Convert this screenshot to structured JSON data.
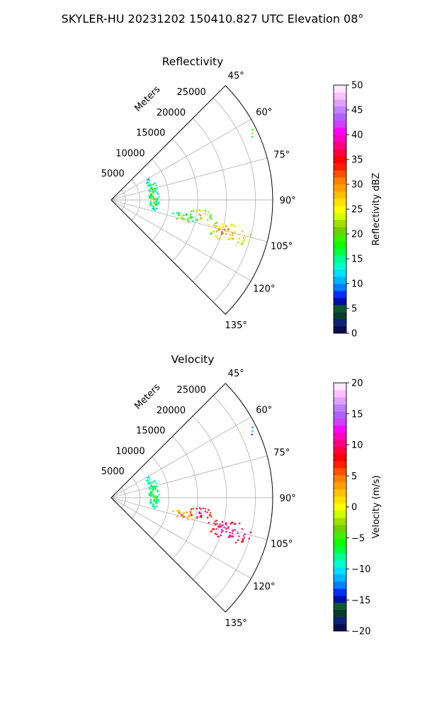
{
  "title": "SKYLER-HU  20231202  150410.827 UTC Elevation 08°",
  "chart_data": [
    {
      "type": "heatmap",
      "subtype": "polar-sector (radar PPI)",
      "title": "Reflectivity",
      "range_axis_label": "Meters",
      "range_ticks": [
        5000,
        10000,
        15000,
        20000,
        25000
      ],
      "range_max": 28000,
      "azimuth_range_deg": [
        45,
        135
      ],
      "azimuth_ticks": [
        "45°",
        "60°",
        "75°",
        "90°",
        "105°",
        "120°",
        "135°"
      ],
      "grid": true,
      "colorbar": {
        "label": "Reflectivity dBZ",
        "min": 0,
        "max": 50,
        "ticks": [
          "0",
          "5",
          "10",
          "15",
          "20",
          "25",
          "30",
          "35",
          "40",
          "45",
          "50"
        ],
        "placement": "right",
        "colors": [
          "#0c0c4f",
          "#0e2378",
          "#0a3d2c",
          "#0d5a32",
          "#0010a8",
          "#0030ff",
          "#0080ff",
          "#00b5ff",
          "#00e0ff",
          "#00ffcc",
          "#00ff90",
          "#00ff40",
          "#10ff00",
          "#40ee00",
          "#70d000",
          "#a0e000",
          "#d0ff00",
          "#ffff00",
          "#ffe000",
          "#ffc000",
          "#ffa000",
          "#ff8000",
          "#ff5000",
          "#ff2000",
          "#ff0000",
          "#ff0040",
          "#ff0080",
          "#ff00c0",
          "#ff00ff",
          "#d040ff",
          "#b060ff",
          "#c080ff",
          "#e0a0ff",
          "#ffc0ff",
          "#ffe8ff"
        ]
      },
      "echoes": [
        {
          "region": "near-range band",
          "az": [
            58,
            106
          ],
          "range_m": [
            6500,
            8200
          ],
          "dbz": 15
        },
        {
          "region": "cluster near 102-104°",
          "az": [
            100,
            106
          ],
          "range_m": [
            10500,
            14500
          ],
          "dbz": 18
        },
        {
          "region": "cluster near 99°",
          "az": [
            96,
            103
          ],
          "range_m": [
            13500,
            17500
          ],
          "dbz": 22
        },
        {
          "region": "main cluster near 105°",
          "az": [
            101,
            110
          ],
          "range_m": [
            17000,
            25000
          ],
          "dbz": 25
        },
        {
          "region": "far edge near 65°",
          "az": [
            63,
            66
          ],
          "range_m": [
            26500,
            27800
          ],
          "dbz": 20
        }
      ]
    },
    {
      "type": "heatmap",
      "subtype": "polar-sector (radar PPI)",
      "title": "Velocity",
      "range_axis_label": "Meters",
      "range_ticks": [
        5000,
        10000,
        15000,
        20000,
        25000
      ],
      "range_max": 28000,
      "azimuth_range_deg": [
        45,
        135
      ],
      "azimuth_ticks": [
        "45°",
        "60°",
        "75°",
        "90°",
        "105°",
        "120°",
        "135°"
      ],
      "grid": true,
      "colorbar": {
        "label": "Velocity (m/s)",
        "min": -20,
        "max": 20,
        "ticks": [
          "−20",
          "−15",
          "−10",
          "−5",
          "0",
          "5",
          "10",
          "15",
          "20"
        ],
        "placement": "right",
        "colors": [
          "#0c0c4f",
          "#0e2378",
          "#0a3d2c",
          "#0d5a32",
          "#0010a8",
          "#0030ff",
          "#0080ff",
          "#00b5ff",
          "#00e0ff",
          "#00ffcc",
          "#00ff90",
          "#00ff40",
          "#10ff00",
          "#40ee00",
          "#70d000",
          "#a0e000",
          "#d0ff00",
          "#ffff00",
          "#ffe000",
          "#ffc000",
          "#ffa000",
          "#ff8000",
          "#ff5000",
          "#ff2000",
          "#ff0000",
          "#ff0040",
          "#ff0080",
          "#ff00c0",
          "#ff00ff",
          "#d040ff",
          "#b060ff",
          "#c080ff",
          "#e0a0ff",
          "#ffc0ff",
          "#ffe8ff"
        ]
      },
      "echoes": [
        {
          "region": "near-range band",
          "az": [
            58,
            106
          ],
          "range_m": [
            6500,
            8200
          ],
          "ms": -8
        },
        {
          "region": "cluster near 102-104°",
          "az": [
            100,
            106
          ],
          "range_m": [
            10500,
            14500
          ],
          "ms": 3
        },
        {
          "region": "cluster near 99°",
          "az": [
            96,
            103
          ],
          "range_m": [
            13500,
            17500
          ],
          "ms": 8
        },
        {
          "region": "main cluster near 105°",
          "az": [
            101,
            110
          ],
          "range_m": [
            17000,
            25000
          ],
          "ms": 9
        },
        {
          "region": "far edge near 65°",
          "az": [
            63,
            66
          ],
          "range_m": [
            26500,
            27800
          ],
          "ms": -12
        }
      ]
    }
  ]
}
